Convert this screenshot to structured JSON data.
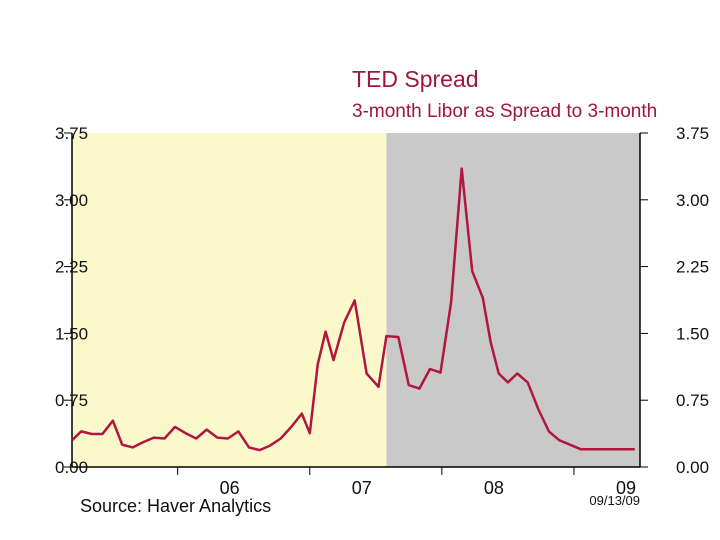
{
  "chart_data": {
    "type": "line",
    "title": "TED Spread",
    "subtitle": "3-month Libor as Spread to 3-month",
    "source": "Source: Haver Analytics",
    "date_stamp": "09/13/09",
    "ylim": [
      0,
      3.75
    ],
    "y_ticks_left": [
      "3.75",
      "3.00",
      "2.25",
      "1.50",
      "0.75",
      "0.00"
    ],
    "y_ticks_right": [
      "3.75",
      "3.00",
      "2.25",
      "1.50",
      "0.75",
      "0.00"
    ],
    "x_ticks": [
      {
        "label": "06",
        "x": 2006.0
      },
      {
        "label": "07",
        "x": 2007.0
      },
      {
        "label": "08",
        "x": 2008.0
      },
      {
        "label": "09",
        "x": 2009.0
      }
    ],
    "xlim": [
      2005.2,
      2009.5
    ],
    "shaded_regions": [
      {
        "from": 2005.2,
        "to": 2007.58,
        "color": "#fbf8cc"
      },
      {
        "from": 2007.58,
        "to": 2009.5,
        "color": "#c9c9c9"
      }
    ],
    "grid": false,
    "line_color": "#b0163e",
    "series": [
      {
        "x": [
          2005.2,
          2005.27,
          2005.35,
          2005.43,
          2005.51,
          2005.58,
          2005.66,
          2005.74,
          2005.82,
          2005.9,
          2005.98,
          2006.06,
          2006.14,
          2006.22,
          2006.3,
          2006.38,
          2006.46,
          2006.54,
          2006.62,
          2006.7,
          2006.78,
          2006.86,
          2006.94,
          2007.0,
          2007.06,
          2007.12,
          2007.18,
          2007.26,
          2007.34,
          2007.43,
          2007.52,
          2007.58,
          2007.67,
          2007.75,
          2007.83,
          2007.91,
          2007.99,
          2008.07,
          2008.15,
          2008.23,
          2008.31,
          2008.37,
          2008.43,
          2008.5,
          2008.57,
          2008.65,
          2008.73,
          2008.81,
          2008.89,
          2008.97,
          2009.05,
          2009.13,
          2009.2,
          2009.28,
          2009.36,
          2009.46
        ],
        "y": [
          0.3,
          0.4,
          0.37,
          0.37,
          0.52,
          0.25,
          0.22,
          0.28,
          0.33,
          0.32,
          0.45,
          0.38,
          0.32,
          0.42,
          0.33,
          0.32,
          0.4,
          0.22,
          0.19,
          0.24,
          0.32,
          0.45,
          0.6,
          0.38,
          1.15,
          1.52,
          1.2,
          1.62,
          1.87,
          1.05,
          0.9,
          1.47,
          1.46,
          0.92,
          0.88,
          1.1,
          1.06,
          1.85,
          3.35,
          2.2,
          1.9,
          1.4,
          1.05,
          0.95,
          1.05,
          0.95,
          0.65,
          0.4,
          0.3,
          0.25,
          0.2,
          0.2,
          0.2,
          0.2,
          0.2,
          0.2
        ]
      }
    ]
  }
}
